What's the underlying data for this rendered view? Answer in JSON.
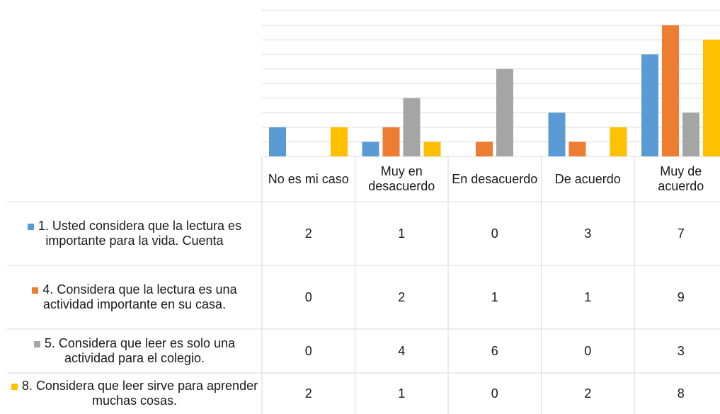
{
  "chart_data": {
    "type": "bar",
    "categories": [
      "No es mi caso",
      "Muy en desacuerdo",
      "En desacuerdo",
      "De acuerdo",
      "Muy de acuerdo"
    ],
    "series": [
      {
        "name": "1. Usted considera que la lectura es importante para la vida. Cuenta",
        "color": "#5b9bd5",
        "values": [
          2,
          1,
          0,
          3,
          7
        ]
      },
      {
        "name": "4. Considera que la lectura es una actividad importante en su casa.",
        "color": "#ed7d31",
        "values": [
          0,
          2,
          1,
          1,
          9
        ]
      },
      {
        "name": "5. Considera que leer es solo una actividad para el colegio.",
        "color": "#a5a5a5",
        "values": [
          0,
          4,
          6,
          0,
          3
        ]
      },
      {
        "name": "8. Considera que leer sirve para aprender muchas cosas.",
        "color": "#ffc000",
        "values": [
          2,
          1,
          0,
          2,
          8
        ]
      }
    ],
    "ylim": [
      0,
      10
    ],
    "yticks": [
      0,
      1,
      2,
      3,
      4,
      5,
      6,
      7,
      8,
      9,
      10
    ],
    "grid": true
  }
}
